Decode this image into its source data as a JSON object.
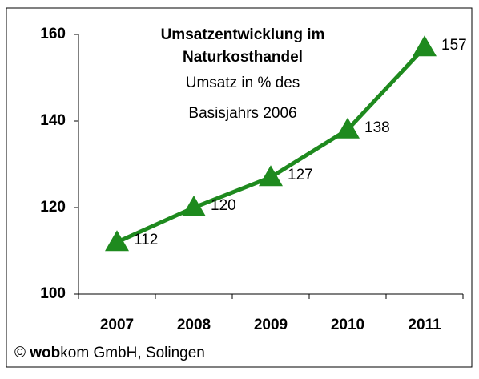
{
  "chart_data": {
    "type": "line",
    "title": [
      "Umsatzentwicklung im",
      "Naturkosthandel"
    ],
    "subtitle": [
      "Umsatz in % des",
      "Basisjahrs 2006"
    ],
    "categories": [
      "2007",
      "2008",
      "2009",
      "2010",
      "2011"
    ],
    "series": [
      {
        "name": "Umsatz",
        "color": "#1e8a1e",
        "values": [
          112,
          120,
          127,
          138,
          157
        ]
      }
    ],
    "ylim": [
      100,
      160
    ],
    "yticks": [
      100,
      120,
      140,
      160
    ],
    "grid": false,
    "source": {
      "prefix": "©",
      "bold": "wob",
      "rest": "kom GmbH, Solingen"
    }
  }
}
